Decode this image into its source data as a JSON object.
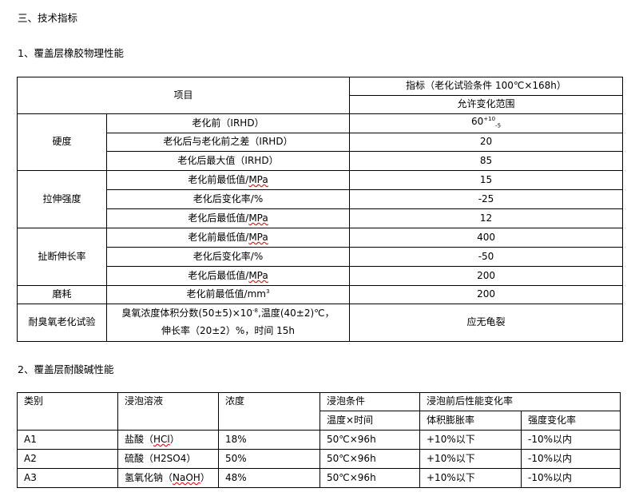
{
  "section_title": "三、技术指标",
  "sub1": "1、覆盖层橡胶物理性能",
  "table1": {
    "h_item": "项目",
    "h_index": "指标（老化试验条件 100℃×168h）",
    "h_range": "允许变化范围",
    "groups": [
      {
        "name": "硬度",
        "rows": [
          [
            "老化前（IRHD）",
            "60"
          ],
          [
            "老化后与老化前之差（IRHD）",
            "20"
          ],
          [
            "老化后最大值（IRHD）",
            "85"
          ]
        ]
      },
      {
        "name": "拉伸强度",
        "rows": [
          [
            "老化前最低值/",
            "MPa",
            "15"
          ],
          [
            "老化后变化率/%",
            "",
            "-25"
          ],
          [
            "老化后最低值/",
            "MPa",
            "12"
          ]
        ]
      },
      {
        "name": "扯断伸长率",
        "rows": [
          [
            "老化前最低值/",
            "MPa",
            "400"
          ],
          [
            "老化后变化率/%",
            "",
            "-50"
          ],
          [
            "老化后最低值/",
            "MPa",
            "200"
          ]
        ]
      }
    ],
    "hardness_tol_plus": "+10",
    "hardness_tol_minus": "-5",
    "wear": {
      "name": "磨耗",
      "item": "老化前最低值/mm",
      "sup": "3",
      "value": "200"
    },
    "ozone": {
      "name": "耐臭氧老化试验",
      "line1a": "臭氧浓度体积分数(50±5)×10",
      "line1sup": "-8",
      "line1b": ",温度(40±2)℃，",
      "line2": "伸长率（20±2）%，时间 15h",
      "value": "应无龟裂"
    }
  },
  "sub2": "2、覆盖层耐酸碱性能",
  "table2": {
    "headers": {
      "cat": "类别",
      "sol": "浸泡溶液",
      "conc": "浓度",
      "cond": "浸泡条件",
      "cond_sub": "温度×时间",
      "change": "浸泡前后性能变化率",
      "vol": "体积膨胀率",
      "str": "强度变化率"
    },
    "rows": [
      {
        "cat": "A1",
        "sol_a": "盐酸（",
        "sol_chem": "HCl",
        "sol_b": "）",
        "conc": "18%",
        "cond": "50℃×96h",
        "vol": "+10%以下",
        "str": "-10%以内"
      },
      {
        "cat": "A2",
        "sol_a": "硫酸（H2SO4）",
        "sol_chem": "",
        "sol_b": "",
        "conc": "50%",
        "cond": "50℃×96h",
        "vol": "+10%以下",
        "str": "-10%以内"
      },
      {
        "cat": "A3",
        "sol_a": "氢氧化钠（",
        "sol_chem": "NaOH",
        "sol_b": "）",
        "conc": "48%",
        "cond": "50℃×96h",
        "vol": "+10%以下",
        "str": "-10%以内"
      }
    ]
  }
}
